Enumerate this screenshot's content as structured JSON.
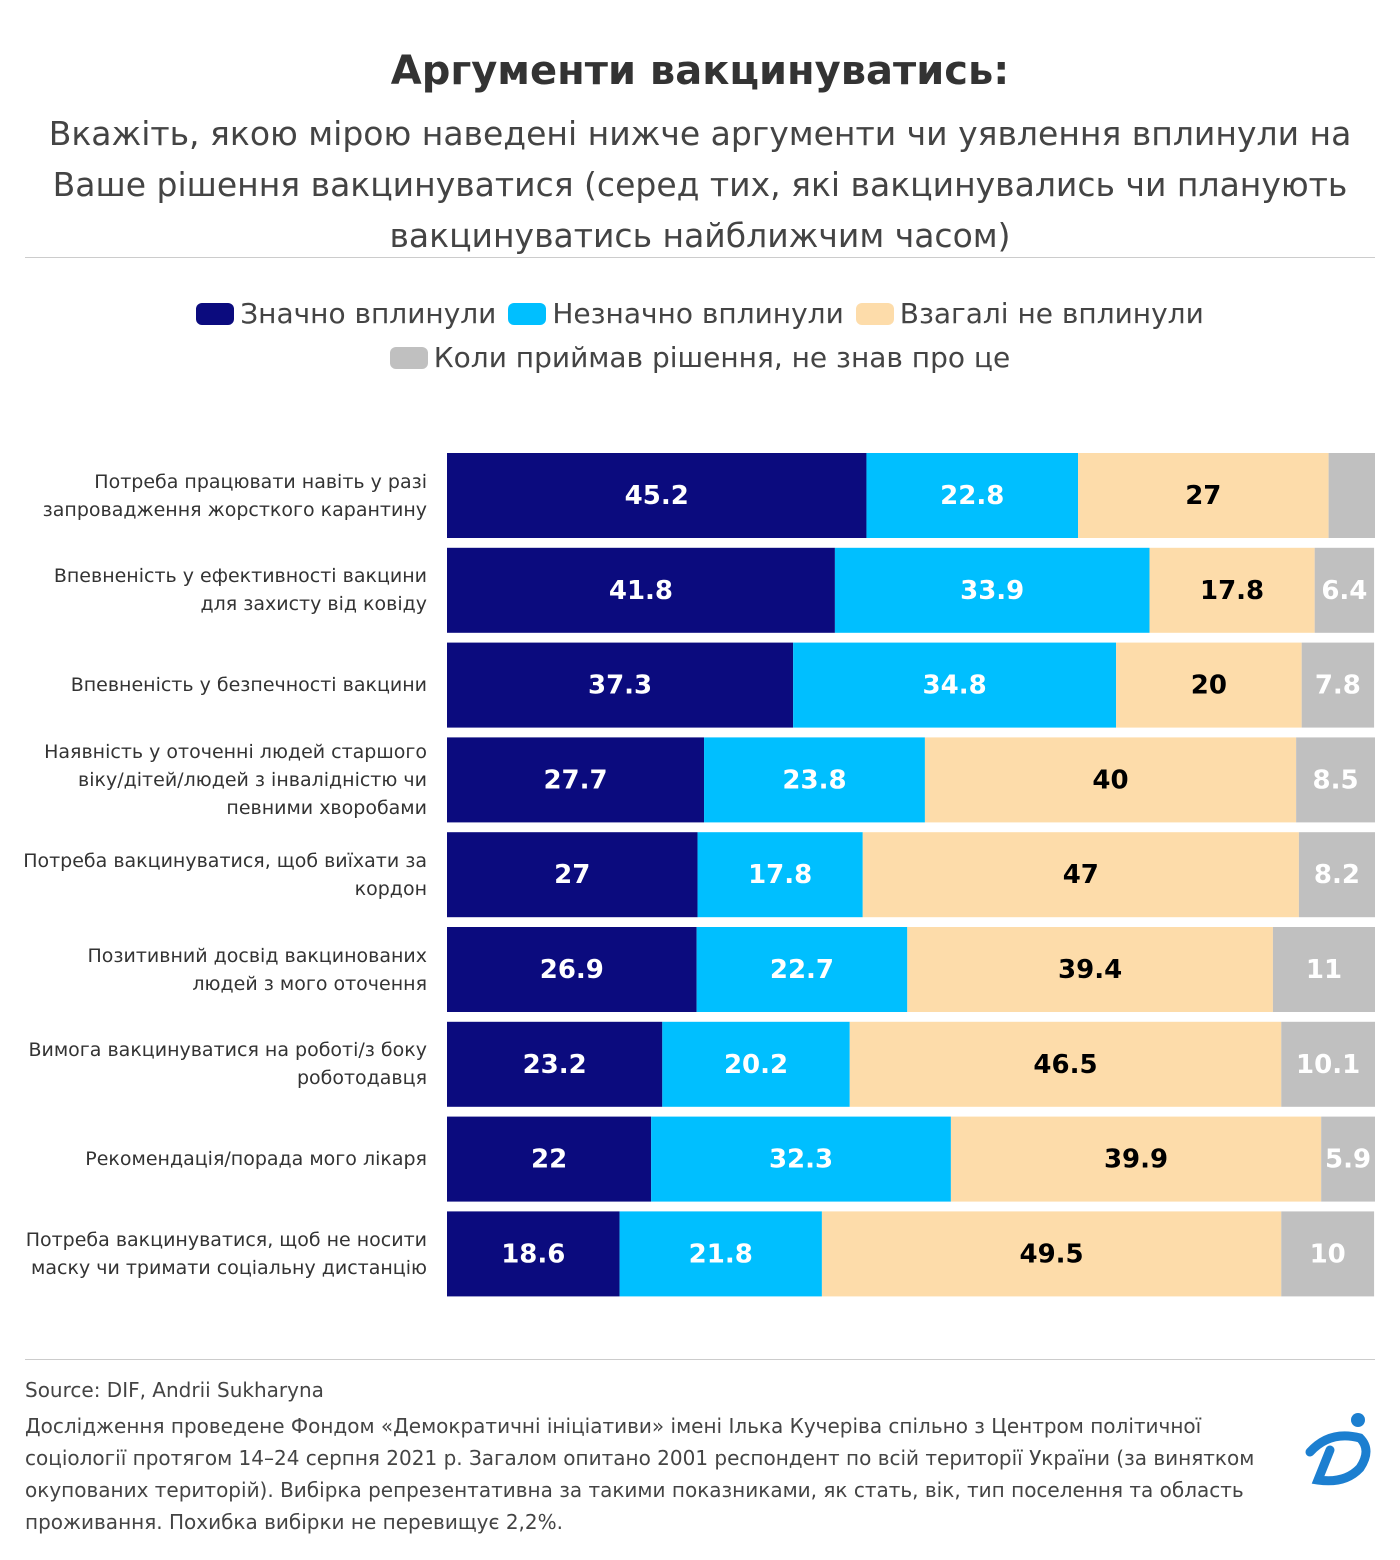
{
  "chart_data": {
    "type": "stacked-bar-horizontal",
    "title": "Аргументи вакцинуватись:",
    "subtitle": "Вкажіть, якою мірою наведені нижче аргументи чи уявлення вплинули на Ваше рішення вакцинуватися (серед тих, які вакцинувались чи планують вакцинуватись найближчим часом)",
    "categories": [
      "Потреба працювати навіть у разі запровадження жорсткого карантину",
      "Впевненість у ефективності вакцини для захисту від ковіду",
      "Впевненість у безпечності вакцини",
      "Наявність у оточенні людей старшого віку/дітей/людей з інвалідністю чи певними хворобами",
      "Потреба вакцинуватися, щоб виїхати за кордон",
      "Позитивний досвід вакцинованих людей з мого оточення",
      "Вимога вакцинуватися на роботі/з боку роботодавця",
      "Рекомендація/порада мого лікаря",
      "Потреба вакцинуватися, щоб не носити маску чи тримати соціальну дистанцію"
    ],
    "series": [
      {
        "name": "Значно вплинули",
        "color": "#0b0b7e",
        "label_color": "#ffffff",
        "values": [
          45.2,
          41.8,
          37.3,
          27.7,
          27,
          26.9,
          23.2,
          22,
          18.6
        ]
      },
      {
        "name": "Незначно вплинули",
        "color": "#00bfff",
        "label_color": "#ffffff",
        "values": [
          22.8,
          33.9,
          34.8,
          23.8,
          17.8,
          22.7,
          20.2,
          32.3,
          21.8
        ]
      },
      {
        "name": "Взагалі не вплинули",
        "color": "#fddcaa",
        "label_color": "#000000",
        "values": [
          27,
          17.8,
          20,
          40,
          47,
          39.4,
          46.5,
          39.9,
          49.5
        ]
      },
      {
        "name": "Коли приймав рішення, не знав про це",
        "color": "#c0c0c0",
        "label_color": "#ffffff",
        "values": [
          5,
          6.4,
          7.8,
          8.5,
          8.2,
          11,
          10.1,
          5.9,
          10
        ]
      }
    ],
    "xlim": [
      0,
      100
    ],
    "source": "Source: DIF, Andrii Sukharyna",
    "note": "Дослідження проведене Фондом «Демократичні ініціативи» імені Ілька Кучеріва спільно з Центром політичної соціології протягом 14–24 серпня 2021 р. Загалом опитано 2001 респондент по всій території України (за винятком окупованих територій). Вибірка репрезентативна за такими показниками, як стать, вік, тип поселення та область проживання. Похибка вибірки не перевищує 2,2%."
  }
}
